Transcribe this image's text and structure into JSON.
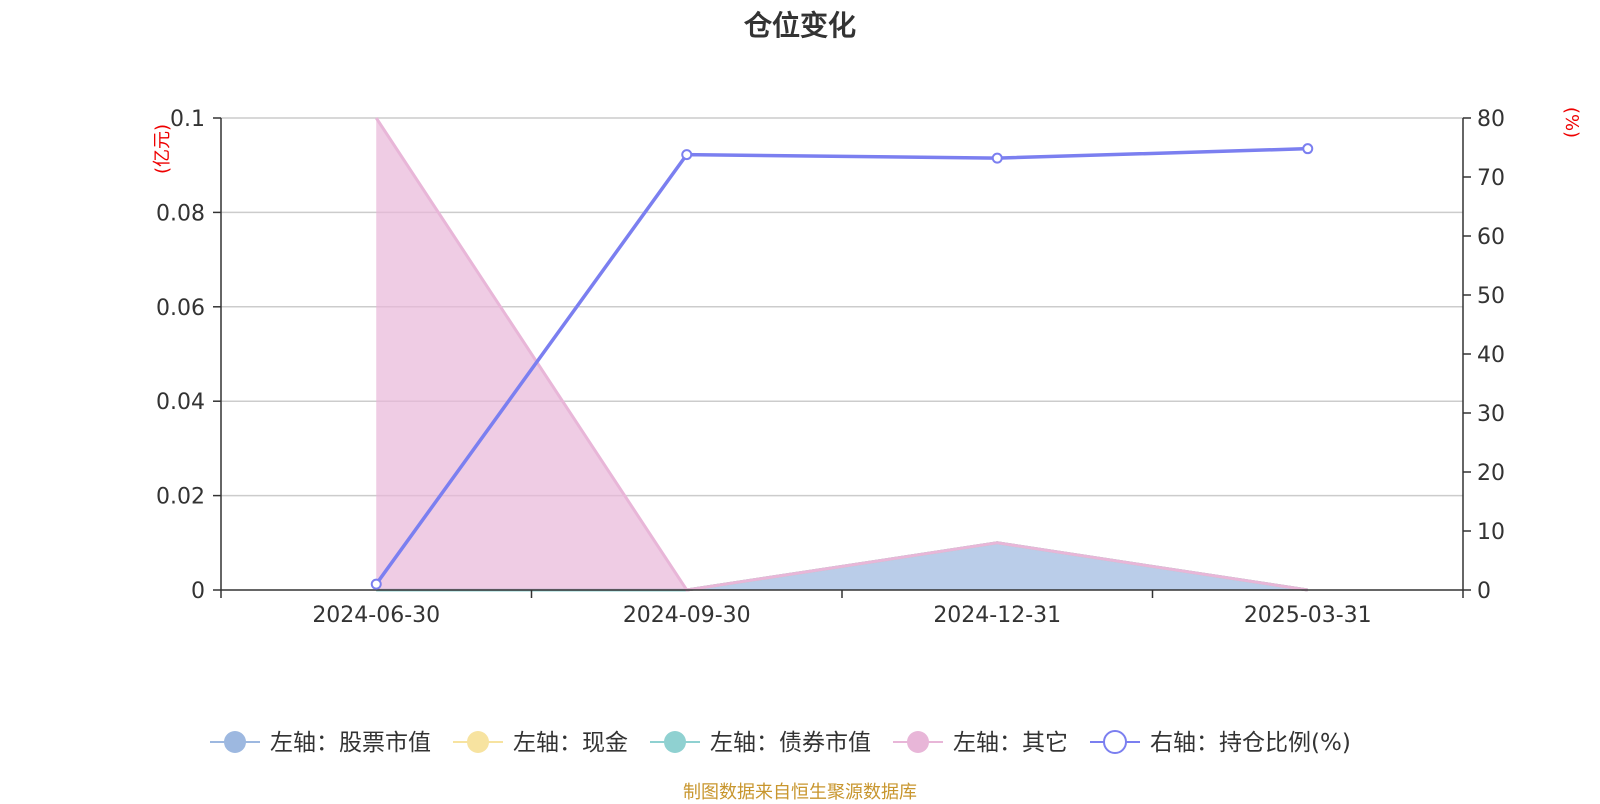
{
  "title": "仓位变化",
  "source_note": "制图数据来自恒生聚源数据库",
  "chart_data": {
    "type": "area",
    "categories": [
      "2024-06-30",
      "2024-09-30",
      "2024-12-31",
      "2025-03-31"
    ],
    "left_axis": {
      "unit": "(亿元)",
      "ylim": [
        0,
        0.1
      ],
      "ticks": [
        "0",
        "0.02",
        "0.04",
        "0.06",
        "0.08",
        "0.1"
      ]
    },
    "right_axis": {
      "unit": "(%)",
      "ylim": [
        0,
        80
      ],
      "ticks": [
        "0",
        "10",
        "20",
        "30",
        "40",
        "50",
        "60",
        "70",
        "80"
      ]
    },
    "grid": true,
    "legend_position": "bottom",
    "series": [
      {
        "name": "左轴：股票市值",
        "axis": "left",
        "type": "area",
        "color": "#9db8e0",
        "values": [
          0,
          0,
          0.01,
          0
        ]
      },
      {
        "name": "左轴：现金",
        "axis": "left",
        "type": "area",
        "color": "#f7e3a0",
        "values": [
          0,
          0,
          0,
          0
        ]
      },
      {
        "name": "左轴：债券市值",
        "axis": "left",
        "type": "area",
        "color": "#8fd1d1",
        "values": [
          0,
          0,
          0,
          0
        ]
      },
      {
        "name": "左轴：其它",
        "axis": "left",
        "type": "area",
        "color": "#e8b6d8",
        "values": [
          0.1,
          0,
          0,
          0
        ]
      },
      {
        "name": "右轴：持仓比例(%)",
        "axis": "right",
        "type": "line",
        "color": "#7b7ff0",
        "values": [
          1,
          73.8,
          73.2,
          74.8
        ]
      }
    ]
  }
}
